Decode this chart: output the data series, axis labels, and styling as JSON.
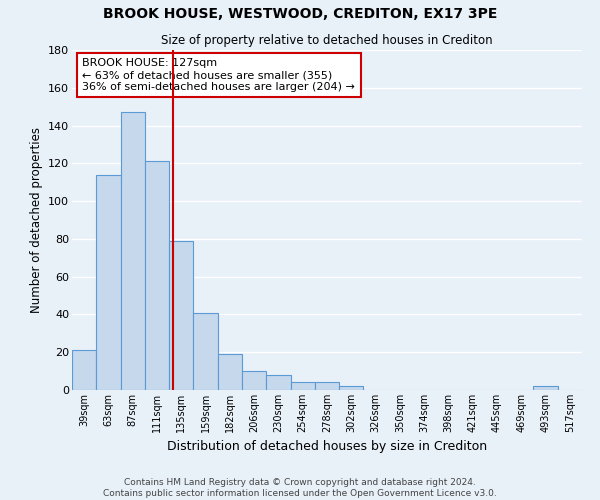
{
  "title": "BROOK HOUSE, WESTWOOD, CREDITON, EX17 3PE",
  "subtitle": "Size of property relative to detached houses in Crediton",
  "xlabel": "Distribution of detached houses by size in Crediton",
  "ylabel": "Number of detached properties",
  "bin_labels": [
    "39sqm",
    "63sqm",
    "87sqm",
    "111sqm",
    "135sqm",
    "159sqm",
    "182sqm",
    "206sqm",
    "230sqm",
    "254sqm",
    "278sqm",
    "302sqm",
    "326sqm",
    "350sqm",
    "374sqm",
    "398sqm",
    "421sqm",
    "445sqm",
    "469sqm",
    "493sqm",
    "517sqm"
  ],
  "bar_values": [
    21,
    114,
    147,
    121,
    79,
    41,
    19,
    10,
    8,
    4,
    4,
    2,
    0,
    0,
    0,
    0,
    0,
    0,
    0,
    2,
    0
  ],
  "bar_color": "#c5d8ec",
  "bar_edge_color": "#5b9bd5",
  "background_color": "#e8f0f8",
  "grid_color": "#ffffff",
  "vline_x_index": 3.667,
  "vline_color": "#cc0000",
  "annotation_text": "BROOK HOUSE: 127sqm\n← 63% of detached houses are smaller (355)\n36% of semi-detached houses are larger (204) →",
  "annotation_box_color": "#ffffff",
  "annotation_box_edge_color": "#cc0000",
  "ylim": [
    0,
    180
  ],
  "yticks": [
    0,
    20,
    40,
    60,
    80,
    100,
    120,
    140,
    160,
    180
  ],
  "footer_line1": "Contains HM Land Registry data © Crown copyright and database right 2024.",
  "footer_line2": "Contains public sector information licensed under the Open Government Licence v3.0."
}
